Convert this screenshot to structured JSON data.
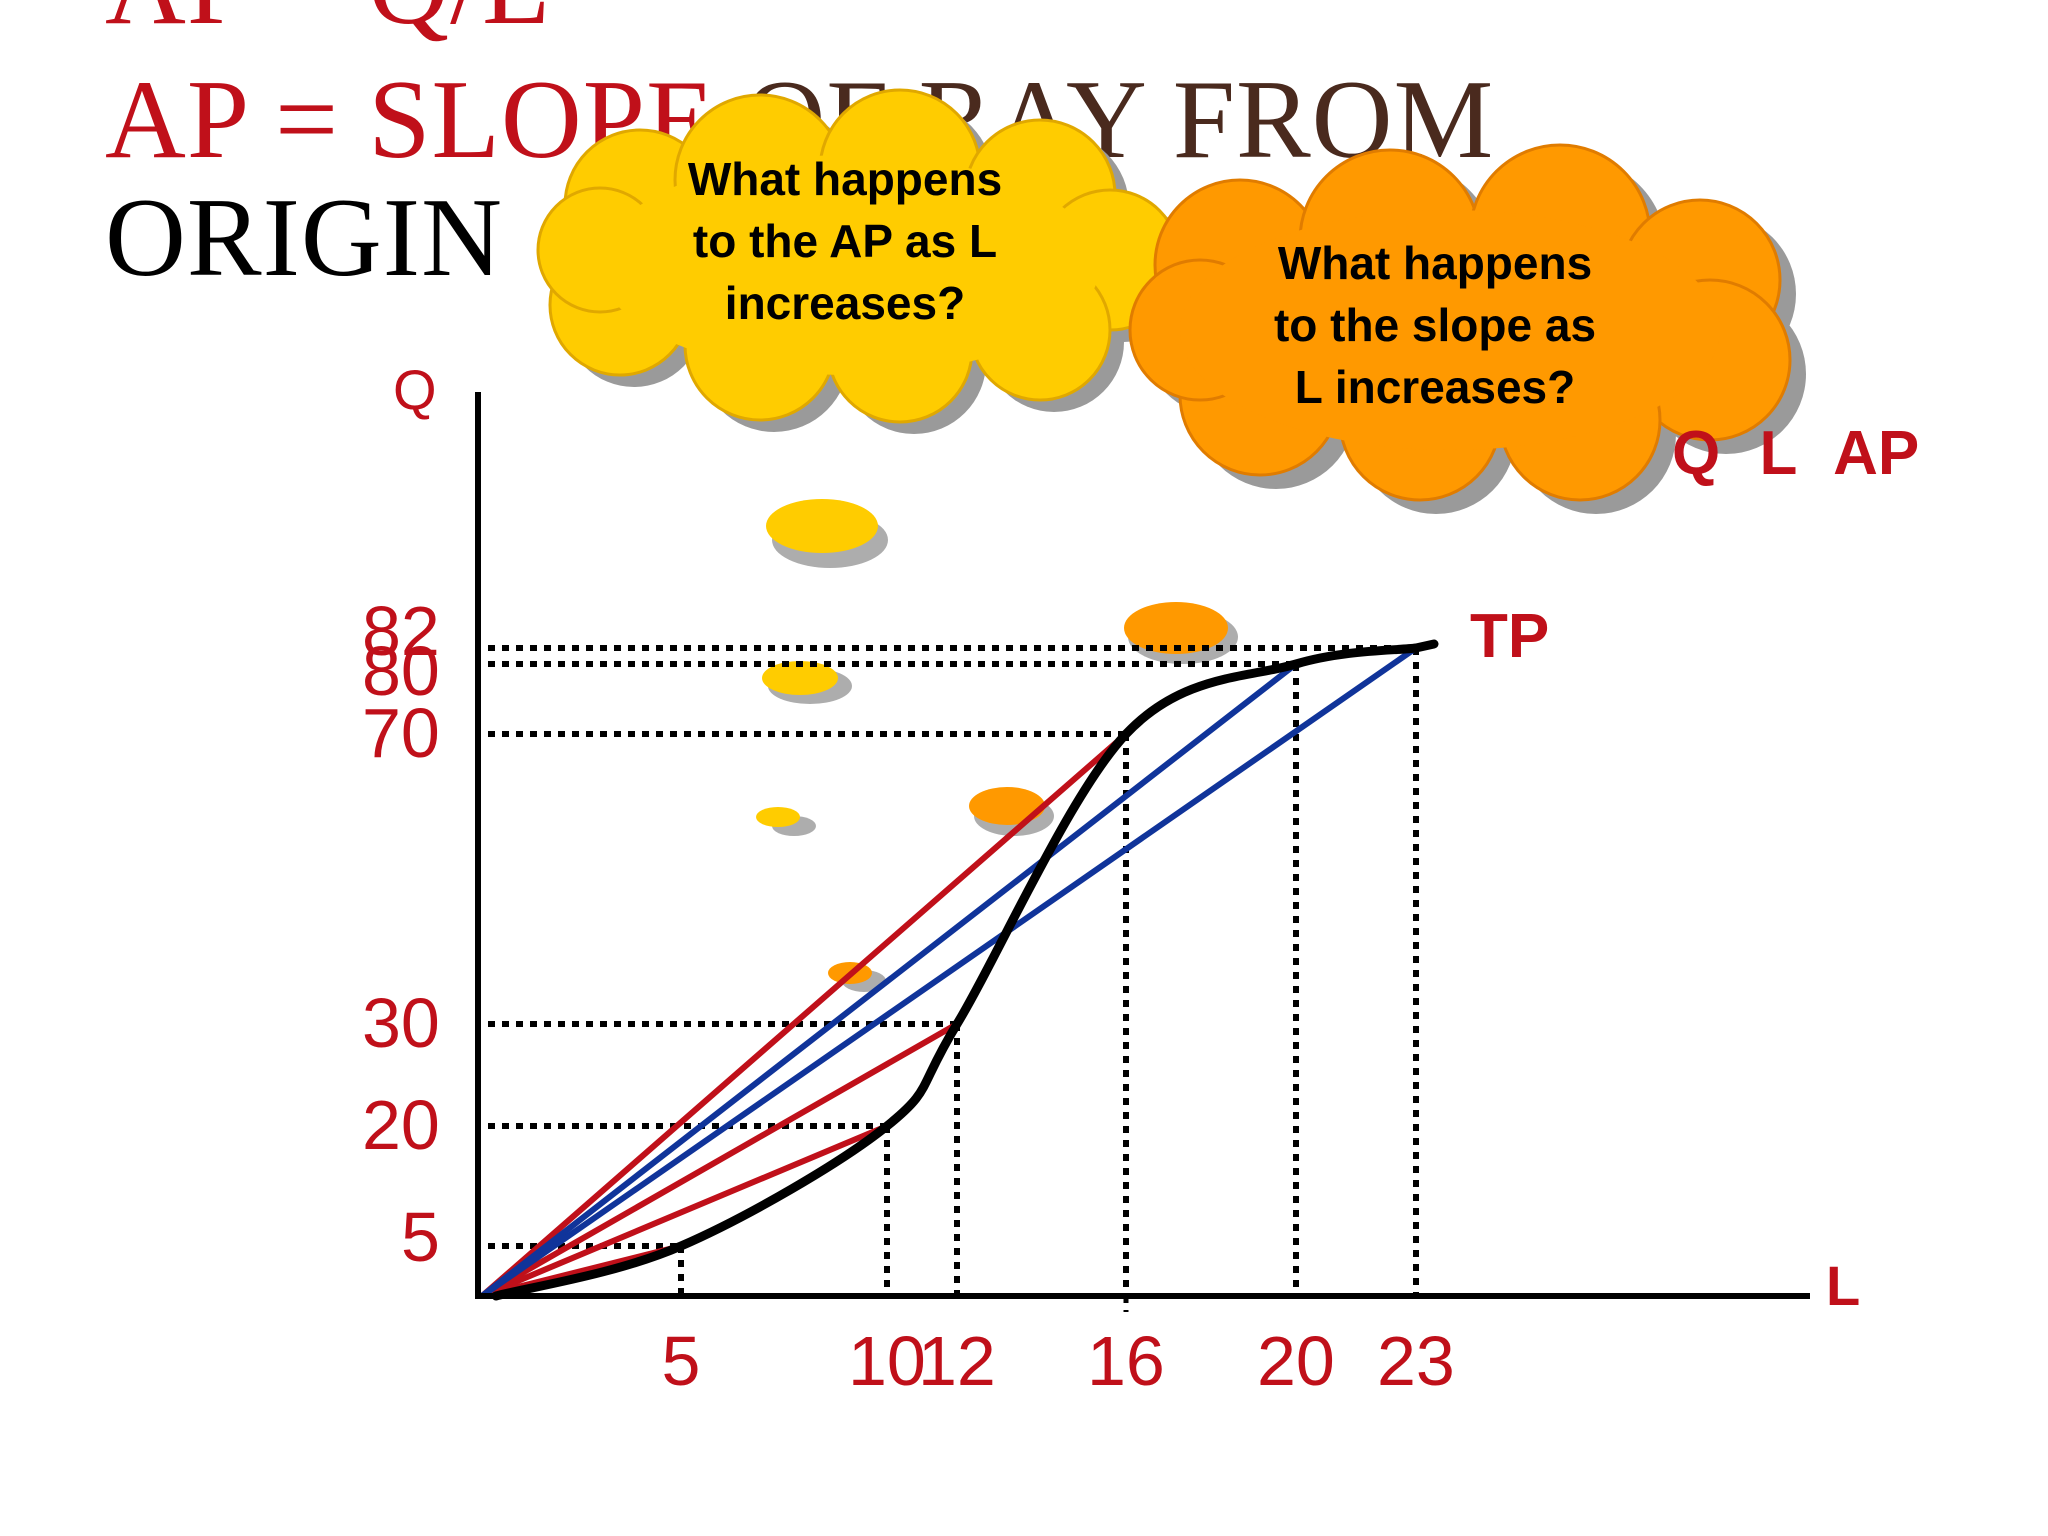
{
  "slide": {
    "title_line_1": "AP = Q/L",
    "title_line_2_prefix": "AP = ",
    "title_line_2_red": "SLOPE",
    "title_line_2_rest": " OF RAY FROM",
    "title_line_3": "ORIGIN"
  },
  "clouds": [
    {
      "lines": [
        "What happens",
        "to the AP as L",
        "increases?"
      ],
      "color": "#ffcc00"
    },
    {
      "lines": [
        "What happens",
        "to the slope as",
        "L increases?"
      ],
      "color": "#ff9900"
    }
  ],
  "table_header": "Q L AP",
  "colors": {
    "red": "#c0101a",
    "blue": "#10349a",
    "curve": "#000000",
    "brown": "#4a2a1e"
  },
  "chart_data": {
    "type": "line",
    "title": "",
    "xlabel": "L",
    "ylabel": "Q",
    "x_ticks": [
      5,
      10,
      12,
      16,
      20,
      23
    ],
    "y_ticks": [
      5,
      20,
      30,
      70,
      80,
      82
    ],
    "series": [
      {
        "name": "TP",
        "x": [
          0,
          5,
          10,
          12,
          16,
          20,
          23
        ],
        "y": [
          0,
          5,
          20,
          30,
          70,
          80,
          82
        ]
      }
    ],
    "rays": [
      {
        "to_x": 5,
        "to_y": 5,
        "color": "red"
      },
      {
        "to_x": 10,
        "to_y": 20,
        "color": "red"
      },
      {
        "to_x": 12,
        "to_y": 30,
        "color": "red"
      },
      {
        "to_x": 16,
        "to_y": 70,
        "color": "red"
      },
      {
        "to_x": 20,
        "to_y": 80,
        "color": "blue"
      },
      {
        "to_x": 23,
        "to_y": 82,
        "color": "blue"
      }
    ],
    "guides": "dotted lines from each point to both axes"
  }
}
